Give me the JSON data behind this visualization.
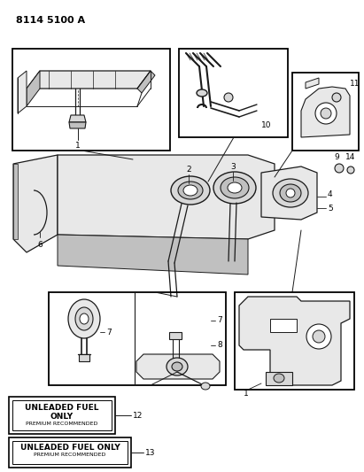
{
  "title": "8114 5100 A",
  "bg_color": "#ffffff",
  "line_color": "#1a1a1a",
  "fig_width": 4.11,
  "fig_height": 5.33,
  "dpi": 100,
  "label12_line1": "UNLEADED FUEL",
  "label12_line2": "ONLY",
  "label12_line3": "PREMIUM RECOMMENDED",
  "label13_line1": "UNLEADED FUEL ONLY",
  "label13_line2": "PREMIUM RECOMMENDED",
  "gray_fill": "#d8d8d8",
  "light_gray": "#e8e8e8",
  "mid_gray": "#c0c0c0"
}
